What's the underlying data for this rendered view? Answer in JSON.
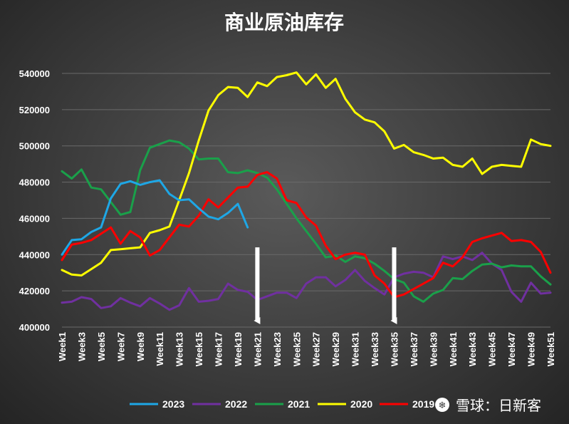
{
  "chart_data": {
    "type": "line",
    "title": "商业原油库存",
    "ylim": [
      400000,
      540000
    ],
    "yticks": [
      400000,
      420000,
      440000,
      460000,
      480000,
      500000,
      520000,
      540000
    ],
    "ytick_labels": [
      "400000",
      "420000",
      "440000",
      "460000",
      "480000",
      "500000",
      "520000",
      "540000"
    ],
    "x_count": 51,
    "xtick_labels": [
      "Week1",
      "Week3",
      "Week5",
      "Week7",
      "Week9",
      "Week11",
      "Week13",
      "Week15",
      "Week17",
      "Week19",
      "Week21",
      "Week23",
      "Week25",
      "Week27",
      "Week29",
      "Week31",
      "Week33",
      "Week35",
      "Week37",
      "Week39",
      "Week41",
      "Week43",
      "Week45",
      "Week47",
      "Week49",
      "Week51"
    ],
    "grid": "horizontal",
    "legend_position": "bottom",
    "annotations": [
      {
        "type": "down-arrow",
        "week": 21,
        "from": 444000,
        "to": 400000
      },
      {
        "type": "down-arrow",
        "week": 35,
        "from": 444000,
        "to": 400000
      }
    ],
    "series": [
      {
        "name": "2023",
        "color": "#1ea7e6",
        "values": [
          440000,
          448000,
          448500,
          452500,
          455000,
          471000,
          479000,
          480500,
          478500,
          480000,
          481000,
          473500,
          470000,
          470500,
          465500,
          461000,
          459500,
          463000,
          468000,
          455000
        ]
      },
      {
        "name": "2022",
        "color": "#7030a0",
        "values": [
          413500,
          414000,
          416500,
          415500,
          410500,
          411500,
          416000,
          413500,
          411500,
          416000,
          413000,
          409500,
          412000,
          421500,
          414000,
          414500,
          415500,
          424000,
          420500,
          419500,
          415000,
          417000,
          419000,
          419000,
          416000,
          424000,
          427500,
          427500,
          422500,
          426000,
          431500,
          425500,
          421500,
          418000,
          427500,
          429500,
          430500,
          430000,
          427500,
          439000,
          437500,
          439000,
          437000,
          441000,
          435000,
          431500,
          419500,
          414000,
          424500,
          418500,
          419000
        ]
      },
      {
        "name": "2021",
        "color": "#1aa04a",
        "values": [
          486000,
          482000,
          487000,
          477000,
          476000,
          469000,
          462000,
          463500,
          486500,
          499000,
          501000,
          503000,
          502000,
          498500,
          492500,
          493000,
          493000,
          485500,
          485000,
          486500,
          485000,
          482500,
          476000,
          468000,
          460000,
          453000,
          446000,
          438500,
          439500,
          436000,
          439000,
          438000,
          435000,
          431000,
          426500,
          424500,
          417000,
          414000,
          418500,
          420500,
          427000,
          426500,
          431000,
          434500,
          435000,
          433000,
          434000,
          433500,
          433500,
          428000,
          423500
        ]
      },
      {
        "name": "2020",
        "color": "#ffff00",
        "values": [
          431500,
          429000,
          428500,
          432000,
          435500,
          442500,
          443000,
          443500,
          444000,
          452000,
          453500,
          455500,
          470000,
          485000,
          503000,
          519500,
          528000,
          532500,
          532000,
          527000,
          535000,
          533000,
          538000,
          539000,
          540500,
          534000,
          539500,
          532000,
          537000,
          526000,
          518500,
          514500,
          513000,
          508000,
          498500,
          500500,
          496500,
          495000,
          493000,
          493500,
          489500,
          488500,
          493000,
          484500,
          488500,
          489500,
          489000,
          488500,
          503500,
          501000,
          500000
        ]
      },
      {
        "name": "2019",
        "color": "#ff0000",
        "values": [
          437000,
          445500,
          446500,
          448000,
          451500,
          455000,
          446000,
          453000,
          449500,
          439500,
          442500,
          449500,
          456500,
          455500,
          461500,
          470500,
          466000,
          471500,
          477000,
          477500,
          484000,
          485500,
          482000,
          470000,
          468500,
          460500,
          456000,
          445000,
          437500,
          440000,
          441000,
          440000,
          428500,
          424000,
          416500,
          418000,
          421000,
          424000,
          427000,
          435500,
          433500,
          438500,
          447000,
          449000,
          450500,
          452000,
          447500,
          448000,
          447000,
          441500,
          430000
        ]
      }
    ]
  },
  "watermark": {
    "symbol": "❄",
    "text": "雪球：日新客"
  }
}
